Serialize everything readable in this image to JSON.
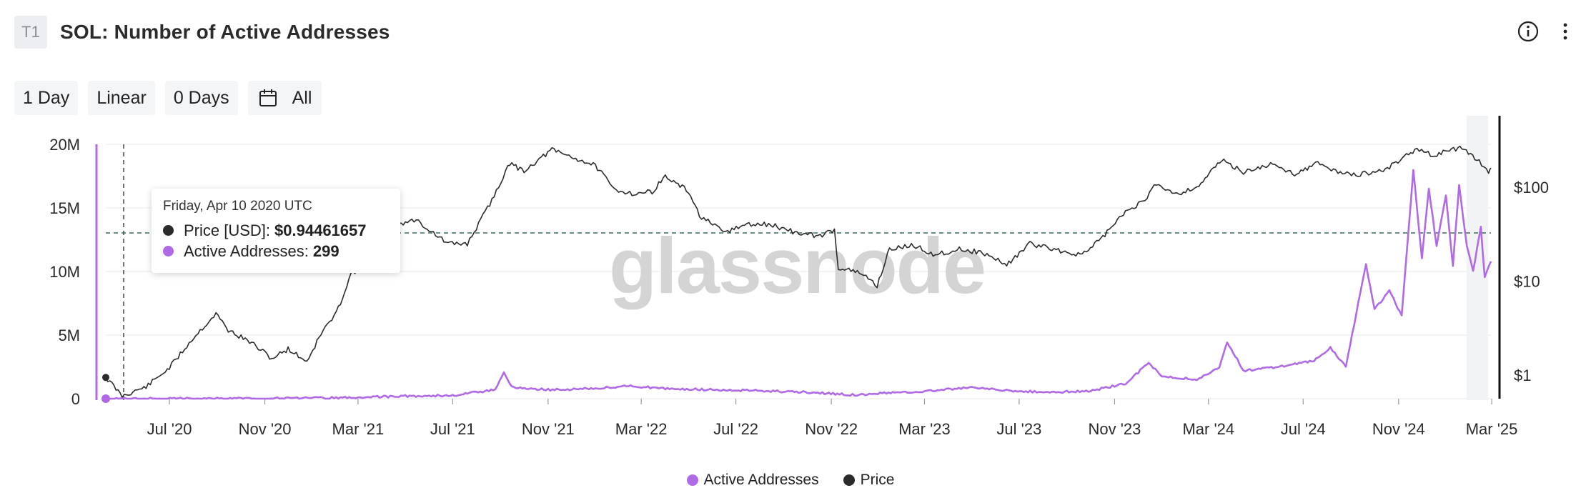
{
  "header": {
    "badge": "T1",
    "title": "SOL: Number of Active Addresses"
  },
  "icons": {
    "info": "info-icon",
    "more": "more-vertical-icon",
    "calendar": "calendar-icon"
  },
  "controls": {
    "resolution": "1 Day",
    "scale": "Linear",
    "smoothing": "0 Days",
    "range": "All"
  },
  "watermark": "glassnode",
  "tooltip": {
    "date": "Friday, Apr 10 2020 UTC",
    "price_label": "Price [USD]:",
    "price_value": "$0.94461657",
    "addr_label": "Active Addresses:",
    "addr_value": "299"
  },
  "legend": {
    "active": "Active Addresses",
    "price": "Price"
  },
  "colors": {
    "active_addresses": "#b06ae6",
    "price": "#2b2b2b",
    "axis_right": "#111111",
    "grid": "#eeeeee"
  },
  "chart_data": {
    "type": "line",
    "x_axis": {
      "ticks": [
        "Jul '20",
        "Nov '20",
        "Mar '21",
        "Jul '21",
        "Nov '21",
        "Mar '22",
        "Jul '22",
        "Nov '22",
        "Mar '23",
        "Jul '23",
        "Nov '23",
        "Mar '24",
        "Jul '24",
        "Nov '24",
        "Mar '25"
      ],
      "range": [
        "2020-04-10",
        "2025-02-28"
      ]
    },
    "y_left": {
      "ticks": [
        "0",
        "5M",
        "10M",
        "15M",
        "20M"
      ],
      "ylim": [
        0,
        20000000
      ]
    },
    "y_right": {
      "ticks": [
        "$1",
        "$10",
        "$100"
      ],
      "scale": "log",
      "ylim": [
        0.5,
        300
      ]
    },
    "crosshair": {
      "date": "2020-04-10",
      "price": 0.94461657,
      "active_addresses": 299
    },
    "series": [
      {
        "name": "Price",
        "axis": "right",
        "points": [
          [
            "2020-04-10",
            0.95
          ],
          [
            "2020-05-01",
            0.6
          ],
          [
            "2020-06-01",
            0.75
          ],
          [
            "2020-07-01",
            1.2
          ],
          [
            "2020-08-01",
            2.5
          ],
          [
            "2020-08-30",
            4.5
          ],
          [
            "2020-09-15",
            3.0
          ],
          [
            "2020-10-15",
            2.2
          ],
          [
            "2020-11-10",
            1.5
          ],
          [
            "2020-12-01",
            1.9
          ],
          [
            "2020-12-25",
            1.4
          ],
          [
            "2021-01-15",
            3.0
          ],
          [
            "2021-02-01",
            4.5
          ],
          [
            "2021-02-20",
            12.0
          ],
          [
            "2021-03-10",
            15.0
          ],
          [
            "2021-04-01",
            20.0
          ],
          [
            "2021-04-20",
            40.0
          ],
          [
            "2021-05-15",
            45.0
          ],
          [
            "2021-06-01",
            35.0
          ],
          [
            "2021-06-25",
            25.0
          ],
          [
            "2021-07-20",
            25.0
          ],
          [
            "2021-08-15",
            60.0
          ],
          [
            "2021-09-01",
            110.0
          ],
          [
            "2021-09-10",
            180.0
          ],
          [
            "2021-10-01",
            150.0
          ],
          [
            "2021-11-06",
            250.0
          ],
          [
            "2021-12-01",
            210.0
          ],
          [
            "2022-01-01",
            170.0
          ],
          [
            "2022-01-25",
            95.0
          ],
          [
            "2022-02-20",
            85.0
          ],
          [
            "2022-03-15",
            90.0
          ],
          [
            "2022-04-01",
            130.0
          ],
          [
            "2022-05-01",
            90.0
          ],
          [
            "2022-05-15",
            50.0
          ],
          [
            "2022-06-15",
            33.0
          ],
          [
            "2022-07-15",
            40.0
          ],
          [
            "2022-08-15",
            40.0
          ],
          [
            "2022-09-15",
            33.0
          ],
          [
            "2022-10-15",
            30.0
          ],
          [
            "2022-11-05",
            35.0
          ],
          [
            "2022-11-10",
            14.0
          ],
          [
            "2022-12-10",
            12.0
          ],
          [
            "2022-12-30",
            9.0
          ],
          [
            "2023-01-15",
            22.0
          ],
          [
            "2023-02-15",
            24.0
          ],
          [
            "2023-03-15",
            19.0
          ],
          [
            "2023-04-15",
            22.0
          ],
          [
            "2023-05-15",
            20.0
          ],
          [
            "2023-06-15",
            15.0
          ],
          [
            "2023-07-15",
            25.0
          ],
          [
            "2023-08-15",
            22.0
          ],
          [
            "2023-09-15",
            19.0
          ],
          [
            "2023-10-01",
            22.0
          ],
          [
            "2023-10-25",
            35.0
          ],
          [
            "2023-11-15",
            55.0
          ],
          [
            "2023-12-10",
            72.0
          ],
          [
            "2023-12-25",
            110.0
          ],
          [
            "2024-01-20",
            85.0
          ],
          [
            "2024-02-15",
            100.0
          ],
          [
            "2024-03-18",
            195.0
          ],
          [
            "2024-04-15",
            145.0
          ],
          [
            "2024-05-20",
            175.0
          ],
          [
            "2024-06-20",
            140.0
          ],
          [
            "2024-07-20",
            180.0
          ],
          [
            "2024-08-15",
            145.0
          ],
          [
            "2024-09-10",
            135.0
          ],
          [
            "2024-10-15",
            155.0
          ],
          [
            "2024-11-22",
            250.0
          ],
          [
            "2024-12-15",
            220.0
          ],
          [
            "2025-01-19",
            260.0
          ],
          [
            "2025-02-10",
            200.0
          ],
          [
            "2025-02-25",
            140.0
          ],
          [
            "2025-02-28",
            160.0
          ]
        ]
      },
      {
        "name": "Active Addresses",
        "axis": "left",
        "points": [
          [
            "2020-04-10",
            299
          ],
          [
            "2020-06-01",
            5000
          ],
          [
            "2020-08-01",
            10000
          ],
          [
            "2020-10-01",
            15000
          ],
          [
            "2021-01-01",
            40000
          ],
          [
            "2021-03-01",
            100000
          ],
          [
            "2021-05-01",
            200000
          ],
          [
            "2021-07-01",
            250000
          ],
          [
            "2021-08-25",
            700000
          ],
          [
            "2021-09-05",
            2100000
          ],
          [
            "2021-09-15",
            900000
          ],
          [
            "2021-11-01",
            700000
          ],
          [
            "2022-01-01",
            800000
          ],
          [
            "2022-02-10",
            1000000
          ],
          [
            "2022-04-01",
            800000
          ],
          [
            "2022-06-01",
            700000
          ],
          [
            "2022-08-15",
            600000
          ],
          [
            "2022-10-01",
            500000
          ],
          [
            "2022-12-01",
            300000
          ],
          [
            "2023-03-01",
            600000
          ],
          [
            "2023-05-01",
            900000
          ],
          [
            "2023-06-01",
            700000
          ],
          [
            "2023-08-01",
            500000
          ],
          [
            "2023-10-01",
            600000
          ],
          [
            "2023-11-15",
            1200000
          ],
          [
            "2023-12-15",
            2800000
          ],
          [
            "2024-01-01",
            1800000
          ],
          [
            "2024-02-15",
            1500000
          ],
          [
            "2024-03-15",
            2500000
          ],
          [
            "2024-03-25",
            4500000
          ],
          [
            "2024-04-15",
            2200000
          ],
          [
            "2024-06-01",
            2500000
          ],
          [
            "2024-07-15",
            3000000
          ],
          [
            "2024-08-05",
            4000000
          ],
          [
            "2024-08-25",
            2500000
          ],
          [
            "2024-09-10",
            7500000
          ],
          [
            "2024-09-20",
            10500000
          ],
          [
            "2024-10-01",
            7000000
          ],
          [
            "2024-10-20",
            8500000
          ],
          [
            "2024-11-05",
            6500000
          ],
          [
            "2024-11-20",
            18000000
          ],
          [
            "2024-12-01",
            11000000
          ],
          [
            "2024-12-10",
            16500000
          ],
          [
            "2024-12-20",
            12000000
          ],
          [
            "2025-01-01",
            16000000
          ],
          [
            "2025-01-10",
            10500000
          ],
          [
            "2025-01-18",
            16800000
          ],
          [
            "2025-01-28",
            12000000
          ],
          [
            "2025-02-05",
            10000000
          ],
          [
            "2025-02-15",
            13500000
          ],
          [
            "2025-02-20",
            9500000
          ],
          [
            "2025-02-28",
            10800000
          ]
        ]
      }
    ]
  }
}
